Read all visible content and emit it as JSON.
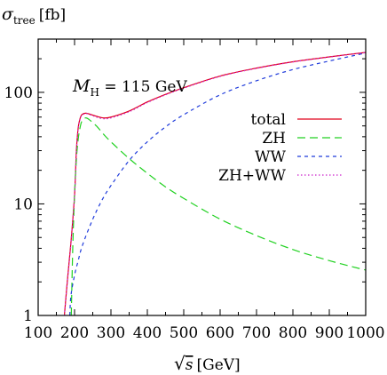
{
  "chart_data": {
    "type": "line",
    "title": "",
    "ylabel": "σ_tree [fb]",
    "ylabel_parts": {
      "symbol": "σ",
      "sub": "tree",
      "unit": "[fb]"
    },
    "xlabel": "√s [GeV]",
    "xlabel_parts": {
      "sqrt": "√",
      "var": "s",
      "unit": "[GeV]"
    },
    "annotation": "M_H = 115 GeV",
    "annotation_parts": {
      "symbol": "M",
      "sub": "H",
      "rest": " = 115 GeV"
    },
    "xlim": [
      100,
      1000
    ],
    "ylim": [
      1,
      300
    ],
    "yscale": "log",
    "grid": false,
    "legend_position": "right",
    "x_ticks": [
      "100",
      "200",
      "300",
      "400",
      "500",
      "600",
      "700",
      "800",
      "900",
      "1000"
    ],
    "x_tick_values": [
      100,
      200,
      300,
      400,
      500,
      600,
      700,
      800,
      900,
      1000
    ],
    "y_ticks": [
      "1",
      "10",
      "100"
    ],
    "y_tick_values": [
      1,
      10,
      100
    ],
    "series": [
      {
        "name": "total",
        "color": "#e0001b",
        "dash": "solid",
        "x": [
          172,
          180,
          190,
          200,
          205,
          210,
          215,
          220,
          230,
          240,
          260,
          280,
          300,
          350,
          400,
          450,
          500,
          600,
          700,
          800,
          900,
          1000
        ],
        "y": [
          1,
          2,
          4.5,
          12,
          30,
          48,
          58,
          63,
          65,
          64,
          61,
          59,
          60,
          68,
          82,
          96,
          110,
          140,
          165,
          188,
          208,
          228
        ]
      },
      {
        "name": "ZH",
        "color": "#21d121",
        "dash": "long",
        "x": [
          191,
          195,
          200,
          205,
          210,
          215,
          220,
          230,
          240,
          260,
          280,
          300,
          350,
          400,
          450,
          500,
          600,
          700,
          800,
          900,
          1000
        ],
        "y": [
          1,
          4,
          12,
          25,
          38,
          48,
          55,
          59,
          57,
          50,
          42,
          36,
          25.5,
          18.8,
          14.2,
          11.2,
          7.3,
          5.2,
          3.9,
          3.1,
          2.55
        ]
      },
      {
        "name": "WW",
        "color": "#1f3bdb",
        "dash": "short",
        "x": [
          187,
          190,
          200,
          210,
          220,
          240,
          260,
          280,
          300,
          350,
          400,
          450,
          500,
          600,
          700,
          800,
          900,
          1000
        ],
        "y": [
          1,
          1.5,
          2.3,
          3.1,
          4.1,
          6.1,
          8.6,
          11.5,
          14.6,
          24.5,
          36,
          49,
          63,
          95,
          127,
          160,
          191,
          225
        ]
      },
      {
        "name": "ZH+WW",
        "color": "#cc22cc",
        "dash": "dotted",
        "x": [
          172,
          180,
          190,
          200,
          205,
          210,
          215,
          220,
          230,
          240,
          260,
          280,
          300,
          350,
          400,
          450,
          500,
          600,
          700,
          800,
          900,
          1000
        ],
        "y": [
          1,
          2,
          4.4,
          11.8,
          29,
          47,
          57,
          62,
          64.5,
          63.5,
          60,
          58,
          59,
          67,
          81,
          95,
          109,
          139,
          164,
          187,
          207,
          227
        ]
      }
    ]
  }
}
